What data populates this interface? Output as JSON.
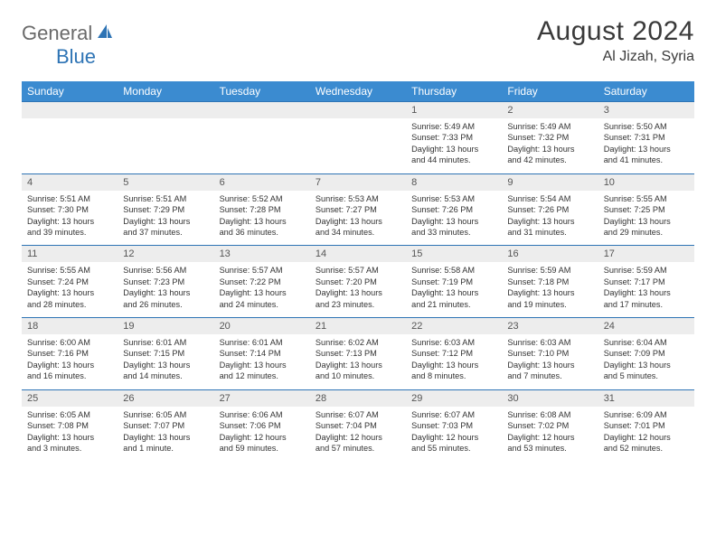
{
  "brand": {
    "text1": "General",
    "text2": "Blue",
    "color1": "#6a6a6a",
    "color2": "#2e74b5"
  },
  "title": "August 2024",
  "location": "Al Jizah, Syria",
  "colors": {
    "header_bg": "#3b8bd0",
    "header_text": "#ffffff",
    "daynum_bg": "#ededed",
    "row_border": "#2e74b5"
  },
  "day_headers": [
    "Sunday",
    "Monday",
    "Tuesday",
    "Wednesday",
    "Thursday",
    "Friday",
    "Saturday"
  ],
  "weeks": [
    {
      "nums": [
        "",
        "",
        "",
        "",
        "1",
        "2",
        "3"
      ],
      "cells": [
        null,
        null,
        null,
        null,
        {
          "sunrise": "Sunrise: 5:49 AM",
          "sunset": "Sunset: 7:33 PM",
          "d1": "Daylight: 13 hours",
          "d2": "and 44 minutes."
        },
        {
          "sunrise": "Sunrise: 5:49 AM",
          "sunset": "Sunset: 7:32 PM",
          "d1": "Daylight: 13 hours",
          "d2": "and 42 minutes."
        },
        {
          "sunrise": "Sunrise: 5:50 AM",
          "sunset": "Sunset: 7:31 PM",
          "d1": "Daylight: 13 hours",
          "d2": "and 41 minutes."
        }
      ]
    },
    {
      "nums": [
        "4",
        "5",
        "6",
        "7",
        "8",
        "9",
        "10"
      ],
      "cells": [
        {
          "sunrise": "Sunrise: 5:51 AM",
          "sunset": "Sunset: 7:30 PM",
          "d1": "Daylight: 13 hours",
          "d2": "and 39 minutes."
        },
        {
          "sunrise": "Sunrise: 5:51 AM",
          "sunset": "Sunset: 7:29 PM",
          "d1": "Daylight: 13 hours",
          "d2": "and 37 minutes."
        },
        {
          "sunrise": "Sunrise: 5:52 AM",
          "sunset": "Sunset: 7:28 PM",
          "d1": "Daylight: 13 hours",
          "d2": "and 36 minutes."
        },
        {
          "sunrise": "Sunrise: 5:53 AM",
          "sunset": "Sunset: 7:27 PM",
          "d1": "Daylight: 13 hours",
          "d2": "and 34 minutes."
        },
        {
          "sunrise": "Sunrise: 5:53 AM",
          "sunset": "Sunset: 7:26 PM",
          "d1": "Daylight: 13 hours",
          "d2": "and 33 minutes."
        },
        {
          "sunrise": "Sunrise: 5:54 AM",
          "sunset": "Sunset: 7:26 PM",
          "d1": "Daylight: 13 hours",
          "d2": "and 31 minutes."
        },
        {
          "sunrise": "Sunrise: 5:55 AM",
          "sunset": "Sunset: 7:25 PM",
          "d1": "Daylight: 13 hours",
          "d2": "and 29 minutes."
        }
      ]
    },
    {
      "nums": [
        "11",
        "12",
        "13",
        "14",
        "15",
        "16",
        "17"
      ],
      "cells": [
        {
          "sunrise": "Sunrise: 5:55 AM",
          "sunset": "Sunset: 7:24 PM",
          "d1": "Daylight: 13 hours",
          "d2": "and 28 minutes."
        },
        {
          "sunrise": "Sunrise: 5:56 AM",
          "sunset": "Sunset: 7:23 PM",
          "d1": "Daylight: 13 hours",
          "d2": "and 26 minutes."
        },
        {
          "sunrise": "Sunrise: 5:57 AM",
          "sunset": "Sunset: 7:22 PM",
          "d1": "Daylight: 13 hours",
          "d2": "and 24 minutes."
        },
        {
          "sunrise": "Sunrise: 5:57 AM",
          "sunset": "Sunset: 7:20 PM",
          "d1": "Daylight: 13 hours",
          "d2": "and 23 minutes."
        },
        {
          "sunrise": "Sunrise: 5:58 AM",
          "sunset": "Sunset: 7:19 PM",
          "d1": "Daylight: 13 hours",
          "d2": "and 21 minutes."
        },
        {
          "sunrise": "Sunrise: 5:59 AM",
          "sunset": "Sunset: 7:18 PM",
          "d1": "Daylight: 13 hours",
          "d2": "and 19 minutes."
        },
        {
          "sunrise": "Sunrise: 5:59 AM",
          "sunset": "Sunset: 7:17 PM",
          "d1": "Daylight: 13 hours",
          "d2": "and 17 minutes."
        }
      ]
    },
    {
      "nums": [
        "18",
        "19",
        "20",
        "21",
        "22",
        "23",
        "24"
      ],
      "cells": [
        {
          "sunrise": "Sunrise: 6:00 AM",
          "sunset": "Sunset: 7:16 PM",
          "d1": "Daylight: 13 hours",
          "d2": "and 16 minutes."
        },
        {
          "sunrise": "Sunrise: 6:01 AM",
          "sunset": "Sunset: 7:15 PM",
          "d1": "Daylight: 13 hours",
          "d2": "and 14 minutes."
        },
        {
          "sunrise": "Sunrise: 6:01 AM",
          "sunset": "Sunset: 7:14 PM",
          "d1": "Daylight: 13 hours",
          "d2": "and 12 minutes."
        },
        {
          "sunrise": "Sunrise: 6:02 AM",
          "sunset": "Sunset: 7:13 PM",
          "d1": "Daylight: 13 hours",
          "d2": "and 10 minutes."
        },
        {
          "sunrise": "Sunrise: 6:03 AM",
          "sunset": "Sunset: 7:12 PM",
          "d1": "Daylight: 13 hours",
          "d2": "and 8 minutes."
        },
        {
          "sunrise": "Sunrise: 6:03 AM",
          "sunset": "Sunset: 7:10 PM",
          "d1": "Daylight: 13 hours",
          "d2": "and 7 minutes."
        },
        {
          "sunrise": "Sunrise: 6:04 AM",
          "sunset": "Sunset: 7:09 PM",
          "d1": "Daylight: 13 hours",
          "d2": "and 5 minutes."
        }
      ]
    },
    {
      "nums": [
        "25",
        "26",
        "27",
        "28",
        "29",
        "30",
        "31"
      ],
      "cells": [
        {
          "sunrise": "Sunrise: 6:05 AM",
          "sunset": "Sunset: 7:08 PM",
          "d1": "Daylight: 13 hours",
          "d2": "and 3 minutes."
        },
        {
          "sunrise": "Sunrise: 6:05 AM",
          "sunset": "Sunset: 7:07 PM",
          "d1": "Daylight: 13 hours",
          "d2": "and 1 minute."
        },
        {
          "sunrise": "Sunrise: 6:06 AM",
          "sunset": "Sunset: 7:06 PM",
          "d1": "Daylight: 12 hours",
          "d2": "and 59 minutes."
        },
        {
          "sunrise": "Sunrise: 6:07 AM",
          "sunset": "Sunset: 7:04 PM",
          "d1": "Daylight: 12 hours",
          "d2": "and 57 minutes."
        },
        {
          "sunrise": "Sunrise: 6:07 AM",
          "sunset": "Sunset: 7:03 PM",
          "d1": "Daylight: 12 hours",
          "d2": "and 55 minutes."
        },
        {
          "sunrise": "Sunrise: 6:08 AM",
          "sunset": "Sunset: 7:02 PM",
          "d1": "Daylight: 12 hours",
          "d2": "and 53 minutes."
        },
        {
          "sunrise": "Sunrise: 6:09 AM",
          "sunset": "Sunset: 7:01 PM",
          "d1": "Daylight: 12 hours",
          "d2": "and 52 minutes."
        }
      ]
    }
  ]
}
